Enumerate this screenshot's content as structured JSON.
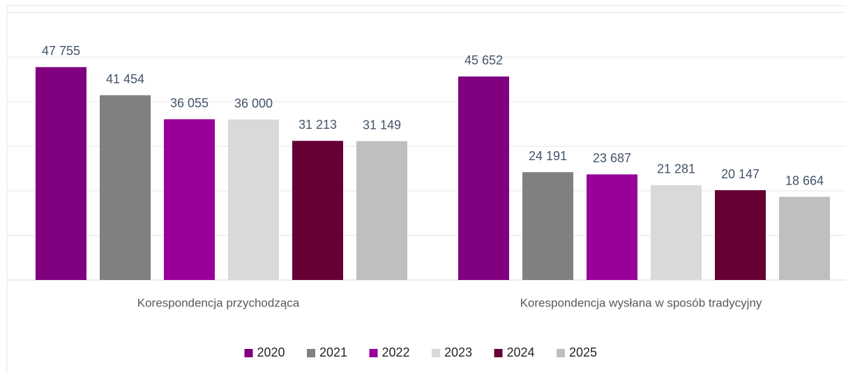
{
  "chart_data": {
    "type": "bar",
    "categories": [
      "Korespondencja przychodząca",
      "Korespondencja wysłana w sposób tradycyjny"
    ],
    "series": [
      {
        "name": "2020",
        "color": "#800080",
        "values": [
          47755,
          45652
        ],
        "value_labels": [
          "47 755",
          "45 652"
        ]
      },
      {
        "name": "2021",
        "color": "#808080",
        "values": [
          41454,
          24191
        ],
        "value_labels": [
          "41 454",
          "24 191"
        ]
      },
      {
        "name": "2022",
        "color": "#990099",
        "values": [
          36055,
          23687
        ],
        "value_labels": [
          "36 055",
          "23 687"
        ]
      },
      {
        "name": "2023",
        "color": "#d9d9d9",
        "values": [
          36000,
          21281
        ],
        "value_labels": [
          "36 000",
          "21 281"
        ]
      },
      {
        "name": "2024",
        "color": "#660033",
        "values": [
          31213,
          20147
        ],
        "value_labels": [
          "31 213",
          "20 147"
        ]
      },
      {
        "name": "2025",
        "color": "#bfbfbf",
        "values": [
          31149,
          18664
        ],
        "value_labels": [
          "31 149",
          "18 664"
        ]
      }
    ],
    "ylim": [
      0,
      60000
    ],
    "yticks": [
      0,
      10000,
      20000,
      30000,
      40000,
      50000,
      60000
    ],
    "grid": true,
    "legend": "bottom"
  }
}
